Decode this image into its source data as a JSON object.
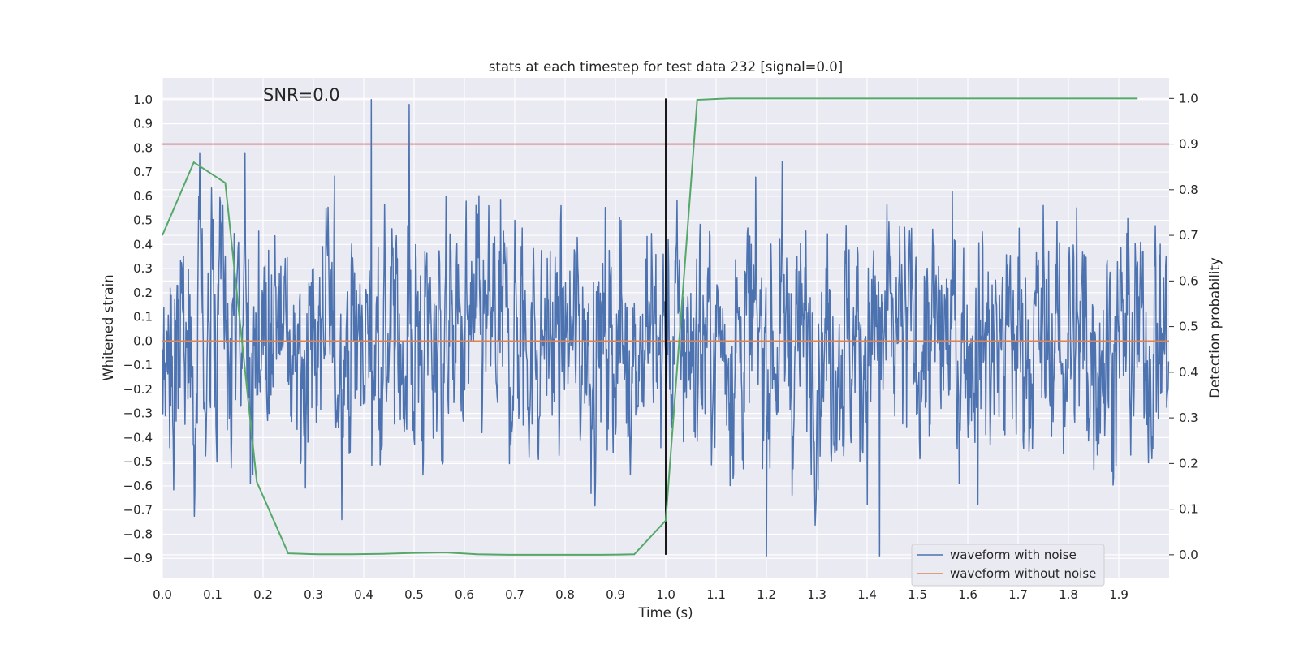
{
  "chart_data": {
    "type": "line",
    "title": "stats at each timestep for test data 232 [signal=0.0]",
    "xlabel": "Time (s)",
    "ylabel": "Whitened strain",
    "ylabel_right": "Detection probability",
    "annotation": "SNR=0.0",
    "xlim": [
      0.0,
      2.0
    ],
    "ylim": [
      -0.98,
      1.09
    ],
    "ylim_right": [
      -0.05,
      1.045
    ],
    "x_ticks": [
      "0.0",
      "0.1",
      "0.2",
      "0.3",
      "0.4",
      "0.5",
      "0.6",
      "0.7",
      "0.8",
      "0.9",
      "1.0",
      "1.1",
      "1.2",
      "1.3",
      "1.4",
      "1.5",
      "1.6",
      "1.7",
      "1.8",
      "1.9"
    ],
    "y_ticks": [
      "1.0",
      "0.9",
      "0.8",
      "0.7",
      "0.6",
      "0.5",
      "0.4",
      "0.3",
      "0.2",
      "0.1",
      "0.0",
      "−0.1",
      "−0.2",
      "−0.3",
      "−0.4",
      "−0.5",
      "−0.6",
      "−0.7",
      "−0.8",
      "−0.9"
    ],
    "y_ticks_right": [
      "1.0",
      "0.9",
      "0.8",
      "0.7",
      "0.6",
      "0.5",
      "0.4",
      "0.3",
      "0.2",
      "0.1",
      "0.0"
    ],
    "grid": true,
    "legend_position": "bottom-right",
    "series": [
      {
        "name": "waveform with noise",
        "color": "#4c72b0",
        "samples": 2048,
        "approx_std": 0.25,
        "approx_range": [
          -0.89,
          1.0
        ],
        "notable_peaks": [
          {
            "x": 0.415,
            "y": 1.0
          },
          {
            "x": 0.49,
            "y": 0.98
          },
          {
            "x": 1.2,
            "y": 0.8
          },
          {
            "x": 1.2,
            "y": -0.89
          },
          {
            "x": 1.425,
            "y": -0.89
          }
        ]
      },
      {
        "name": "waveform without noise",
        "color": "#dd8452",
        "x": [
          0.0,
          2.0
        ],
        "values": [
          0.0,
          0.0
        ]
      }
    ],
    "detection_probability": {
      "color": "#55a868",
      "x": [
        0.0,
        0.0625,
        0.125,
        0.1875,
        0.25,
        0.3125,
        0.375,
        0.4375,
        0.5,
        0.5625,
        0.625,
        0.6875,
        0.75,
        0.8125,
        0.875,
        0.9375,
        1.0,
        1.0625,
        1.125,
        1.1875,
        1.25,
        1.3125,
        1.375,
        1.4375,
        1.5,
        1.5625,
        1.625,
        1.6875,
        1.75,
        1.8125,
        1.875,
        1.9375
      ],
      "values": [
        0.7,
        0.86,
        0.815,
        0.16,
        0.003,
        0.001,
        0.001,
        0.002,
        0.004,
        0.005,
        0.001,
        0.0,
        0.0,
        0.0,
        0.0,
        0.001,
        0.075,
        0.997,
        1.0,
        1.0,
        1.0,
        1.0,
        1.0,
        1.0,
        1.0,
        1.0,
        1.0,
        1.0,
        1.0,
        1.0,
        1.0,
        1.0
      ]
    },
    "threshold": {
      "value": 0.9,
      "axis": "right",
      "color": "#c44e52"
    },
    "event_marker": {
      "x": 1.0,
      "color": "#000000"
    }
  }
}
